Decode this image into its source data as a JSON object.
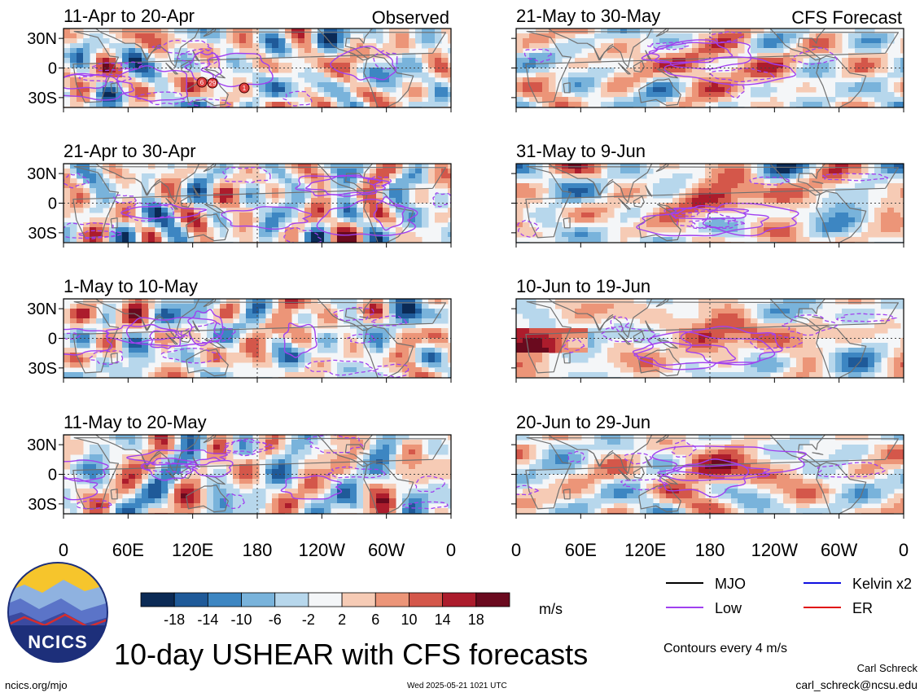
{
  "figure": {
    "title": "10-day USHEAR with CFS forecasts",
    "observed_label": "Observed",
    "forecast_label": "CFS Forecast",
    "website": "ncics.org/mjo",
    "timestamp": "Wed 2025-05-21 1021 UTC",
    "author": "Carl Schreck",
    "email": "carl_schreck@ncsu.edu",
    "logo_text": "NCICS",
    "contour_note": "Contours every 4 m/s",
    "units": "m/s"
  },
  "colors": {
    "mjo": "#000000",
    "kelvin": "#1010e0",
    "low": "#a040f0",
    "er": "#e01010",
    "land": "#707070"
  },
  "chart_data": {
    "type": "heatmap",
    "variable": "USHEAR anomaly (m/s)",
    "x_ticks": [
      "0",
      "60E",
      "120E",
      "180",
      "120W",
      "60W",
      "0"
    ],
    "y_ticks": [
      "30N",
      "0",
      "30S"
    ],
    "colorbar": {
      "tick_labels": [
        "-18",
        "-14",
        "-10",
        "-6",
        "-2",
        "2",
        "6",
        "10",
        "14",
        "18"
      ],
      "colors": [
        "#0b2a55",
        "#1f5a99",
        "#3d86c2",
        "#79b3db",
        "#b7d7ec",
        "#f4f6f8",
        "#f6cbb5",
        "#ec9578",
        "#d4574a",
        "#ac1c2c",
        "#6a0a1e"
      ]
    },
    "legend": [
      {
        "name": "MJO",
        "color": "#000000"
      },
      {
        "name": "Kelvin x2",
        "color": "#1010e0"
      },
      {
        "name": "Low",
        "color": "#a040f0"
      },
      {
        "name": "ER",
        "color": "#e01010"
      }
    ],
    "panels": [
      {
        "period": "11-Apr to 20-Apr",
        "group": "Observed"
      },
      {
        "period": "21-Apr to 30-Apr",
        "group": "Observed"
      },
      {
        "period": "1-May to 10-May",
        "group": "Observed"
      },
      {
        "period": "11-May to 20-May",
        "group": "Observed"
      },
      {
        "period": "21-May to 30-May",
        "group": "CFS Forecast"
      },
      {
        "period": "31-May to 9-Jun",
        "group": "CFS Forecast"
      },
      {
        "period": "10-Jun to 19-Jun",
        "group": "CFS Forecast"
      },
      {
        "period": "20-Jun to 29-Jun",
        "group": "CFS Forecast"
      }
    ],
    "storm_markers": [
      "6",
      "29",
      "1"
    ]
  }
}
